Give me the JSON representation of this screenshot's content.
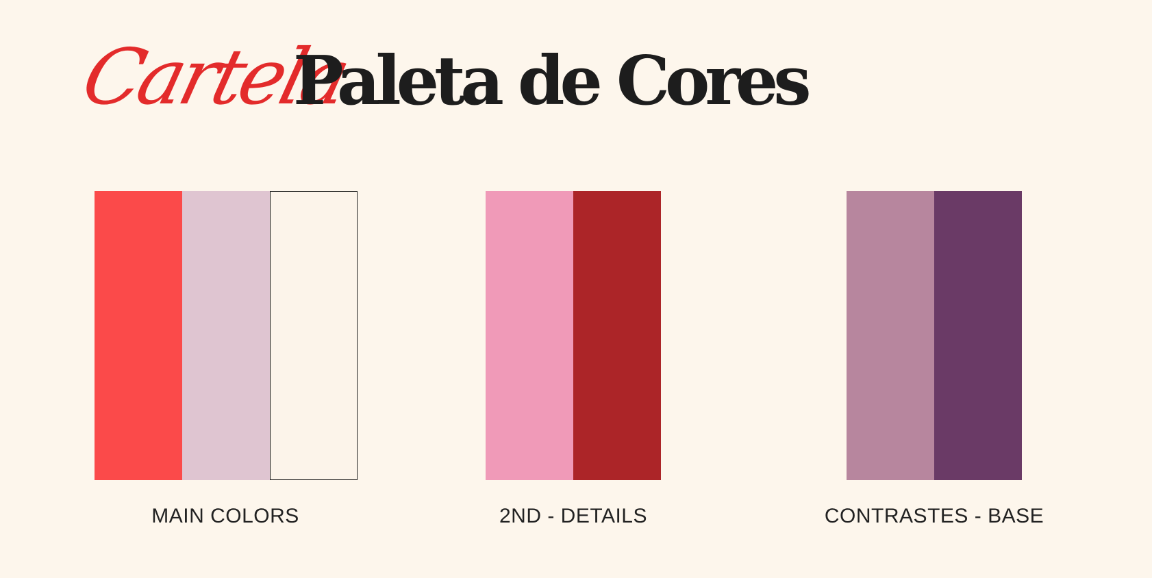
{
  "header": {
    "script_word": "Cartela",
    "title": "Paleta de Cores",
    "script_color": "#e32b2b",
    "title_color": "#1d1d1d"
  },
  "groups": [
    {
      "label": "MAIN COLORS",
      "swatches": [
        "#fb4a4a",
        "#dfc5d1",
        "#fcf4ea"
      ]
    },
    {
      "label": "2ND - DETAILS",
      "swatches": [
        "#f09ab8",
        "#ac2528"
      ]
    },
    {
      "label": "CONTRASTES - BASE",
      "swatches": [
        "#b7869e",
        "#6a3a66"
      ]
    }
  ]
}
